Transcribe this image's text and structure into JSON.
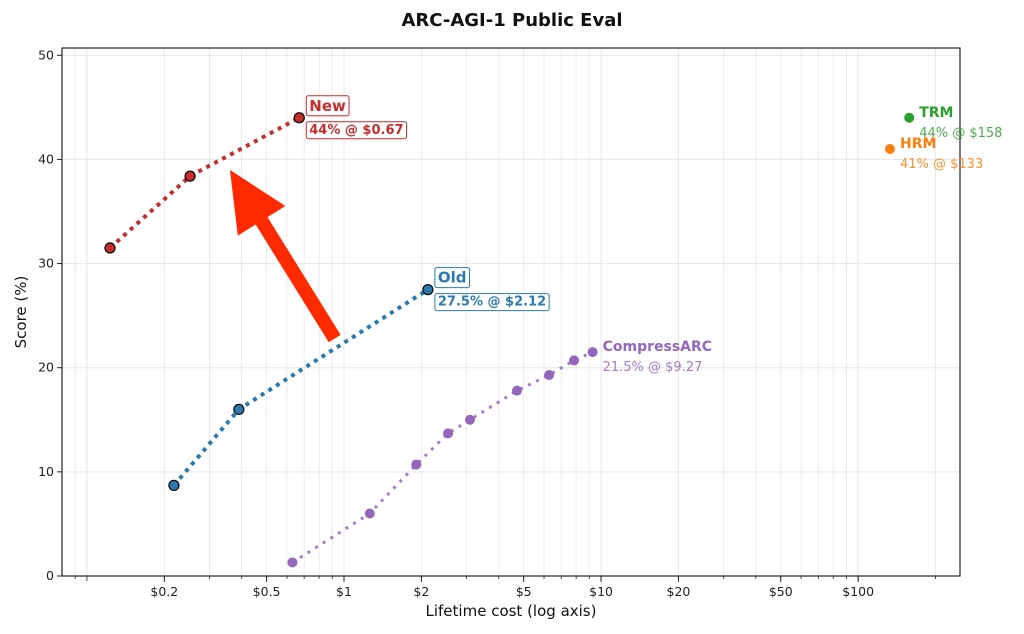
{
  "chart_data": {
    "type": "line",
    "title": "ARC-AGI-1 Public Eval",
    "xlabel": "Lifetime cost (log axis)",
    "ylabel": "Score (%)",
    "xscale": "log",
    "xlim": [
      0.08,
      249
    ],
    "ylim": [
      0,
      50.7
    ],
    "grid": true,
    "x_ticks": [
      0.2,
      0.5,
      1,
      2,
      5,
      10,
      20,
      50,
      100
    ],
    "x_tick_labels": [
      "$0.2",
      "$0.5",
      "$1",
      "$2",
      "$5",
      "$10",
      "$20",
      "$50",
      "$100"
    ],
    "y_ticks": [
      0,
      10,
      20,
      30,
      40,
      50
    ],
    "y_tick_labels": [
      "0",
      "10",
      "20",
      "30",
      "40",
      "50"
    ],
    "series": [
      {
        "name": "New",
        "color": "#c62d2d",
        "style": "dotted",
        "marker_edge": true,
        "x": [
          0.123,
          0.252,
          0.67
        ],
        "y": [
          31.5,
          38.4,
          44
        ],
        "label": "New",
        "sublabel": "44% @ $0.67",
        "boxed": true
      },
      {
        "name": "Old",
        "color": "#2a7ab0",
        "style": "dotted",
        "marker_edge": true,
        "x": [
          0.218,
          0.39,
          2.12
        ],
        "y": [
          8.7,
          16.0,
          27.5
        ],
        "label": "Old",
        "sublabel": "27.5% @ $2.12",
        "boxed": true
      },
      {
        "name": "CompressARC",
        "color": "#9467bd",
        "style": "dotted",
        "marker_edge": false,
        "x": [
          0.63,
          1.26,
          1.91,
          2.54,
          3.09,
          4.71,
          6.28,
          7.85,
          9.27
        ],
        "y": [
          1.3,
          6.0,
          10.7,
          13.7,
          15.0,
          17.8,
          19.3,
          20.7,
          21.5
        ],
        "label": "CompressARC",
        "sublabel": "21.5% @ $9.27",
        "boxed": false
      },
      {
        "name": "TRM",
        "color": "#2ca02c",
        "style": "none",
        "marker_edge": false,
        "x": [
          158
        ],
        "y": [
          44
        ],
        "label": "TRM",
        "sublabel": "44% @ $158",
        "boxed": false
      },
      {
        "name": "HRM",
        "color": "#ff7f0e",
        "style": "none",
        "marker_edge": false,
        "x": [
          133
        ],
        "y": [
          41
        ],
        "label": "HRM",
        "sublabel": "41% @ $133",
        "boxed": false
      }
    ],
    "annotations": [
      {
        "type": "arrow",
        "color": "#ff2a00",
        "from": [
          0.92,
          22.8
        ],
        "to": [
          0.36,
          39.0
        ]
      }
    ]
  }
}
